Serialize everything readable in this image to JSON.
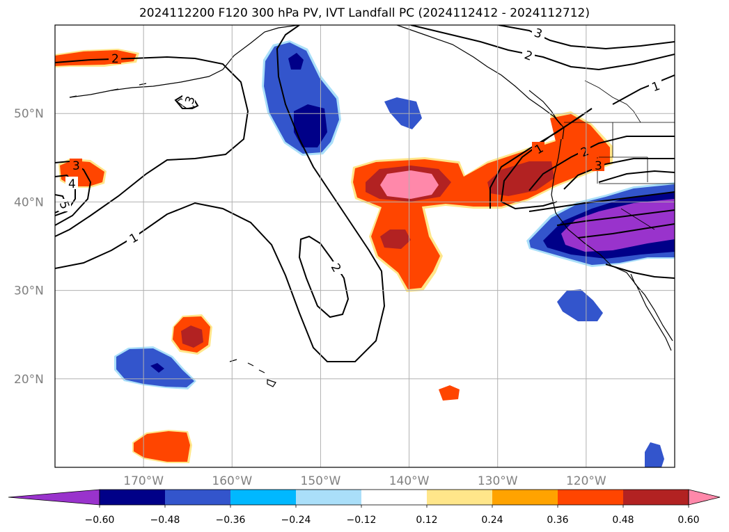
{
  "title": "2024112200 F120 300 hPa PV, IVT Landfall PC (2024112412 - 2024112712)",
  "map": {
    "lon_range": [
      -180,
      -110
    ],
    "lat_range": [
      10,
      60
    ],
    "lat_ticks": [
      {
        "value": 50,
        "label": "50°N"
      },
      {
        "value": 40,
        "label": "40°N"
      },
      {
        "value": 30,
        "label": "30°N"
      },
      {
        "value": 20,
        "label": "20°N"
      }
    ],
    "lon_ticks": [
      {
        "value": -170,
        "label": "170°W"
      },
      {
        "value": -160,
        "label": "160°W"
      },
      {
        "value": -150,
        "label": "150°W"
      },
      {
        "value": -140,
        "label": "140°W"
      },
      {
        "value": -130,
        "label": "130°W"
      },
      {
        "value": -120,
        "label": "120°W"
      }
    ],
    "gridlines": true,
    "gridline_color": "#b0b0b0",
    "contour_labels": [
      "2",
      "3",
      "3",
      "4",
      "5",
      "1",
      "2",
      "3",
      "2",
      "1",
      "1",
      "2",
      "3"
    ]
  },
  "colorbar": {
    "colors": [
      "#9933cc",
      "#000088",
      "#3355cc",
      "#00b8ff",
      "#aadff9",
      "#ffffff",
      "#ffe68a",
      "#ffa300",
      "#ff4500",
      "#b22222",
      "#ff88aa"
    ],
    "tick_labels": [
      "−0.60",
      "−0.48",
      "−0.36",
      "−0.24",
      "−0.12",
      "0.12",
      "0.24",
      "0.36",
      "0.48",
      "0.60"
    ]
  }
}
